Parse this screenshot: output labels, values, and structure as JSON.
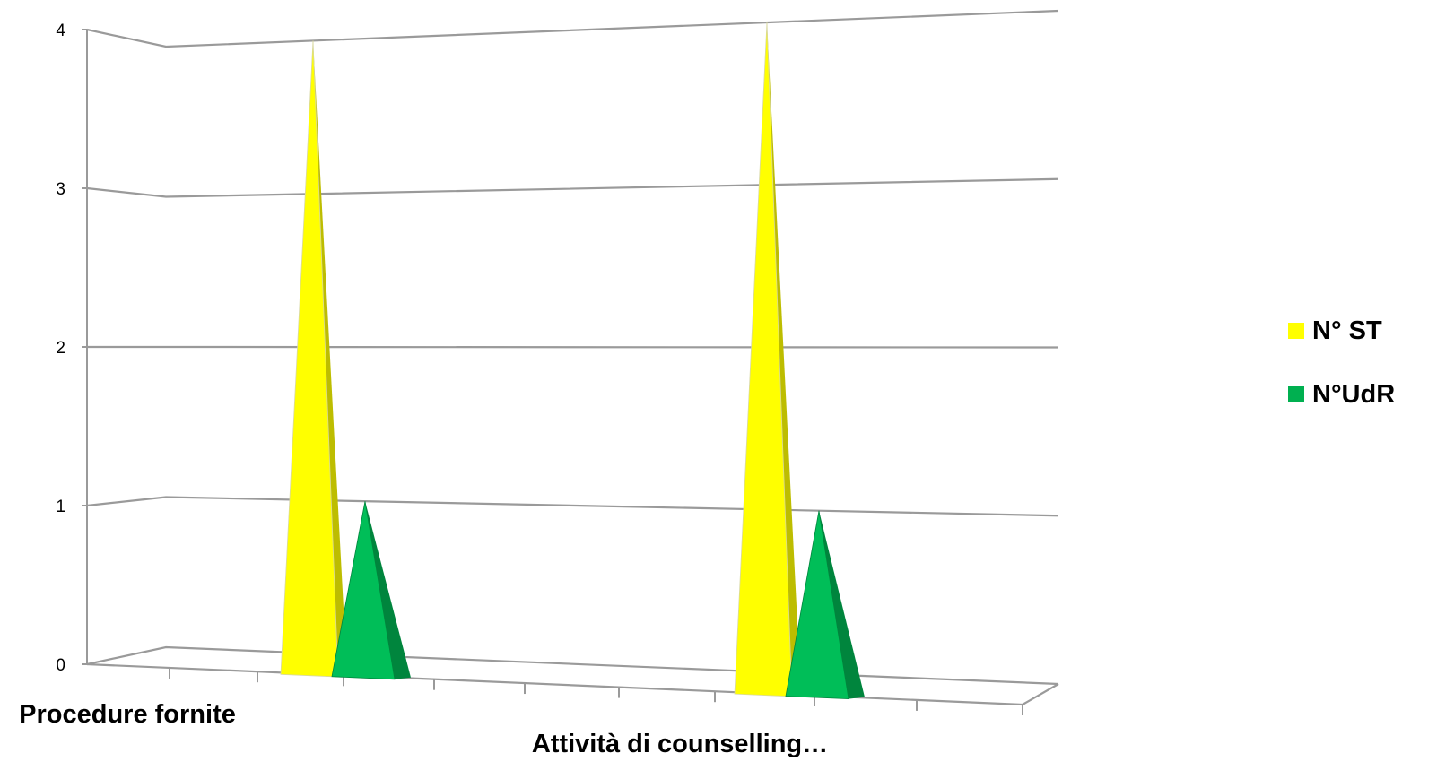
{
  "chart_data": {
    "type": "bar",
    "subtype": "3d-pyramid",
    "categories": [
      "Procedure fornite",
      "Attività di counselling…"
    ],
    "series": [
      {
        "name": "N° ST",
        "values": [
          4,
          4
        ],
        "color": "#FFFF00"
      },
      {
        "name": "N°UdR",
        "values": [
          1,
          1
        ],
        "color": "#00B050"
      }
    ],
    "title": "",
    "xlabel": "",
    "ylabel": "",
    "ylim": [
      0,
      4
    ],
    "yticks": [
      "0",
      "1",
      "2",
      "3",
      "4"
    ],
    "grid": true,
    "legend_position": "right"
  }
}
